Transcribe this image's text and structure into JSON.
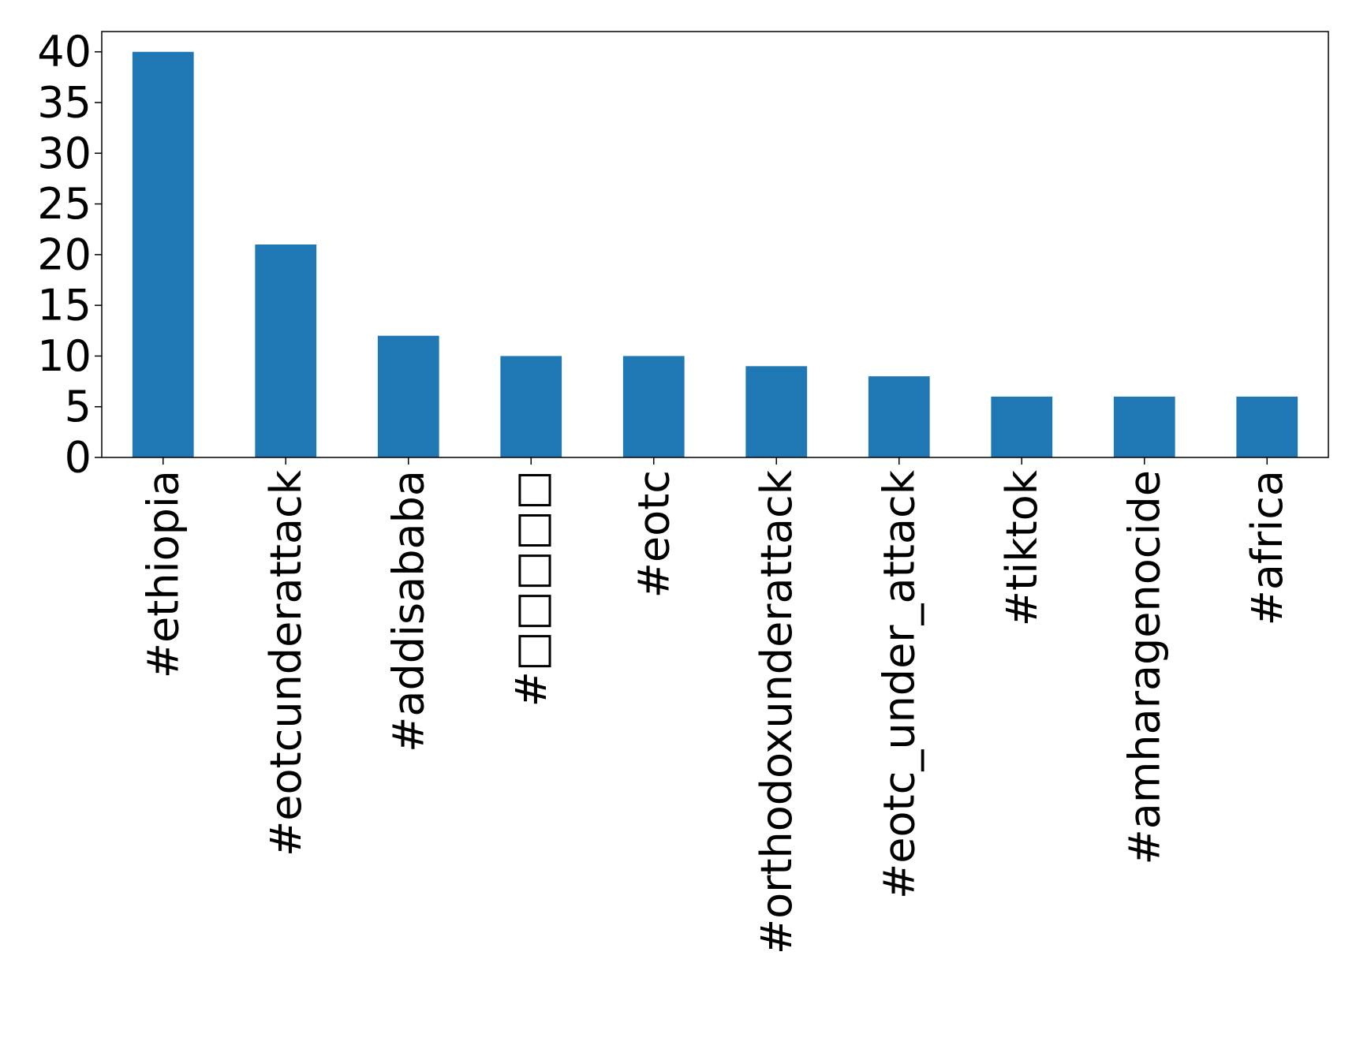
{
  "chart_data": {
    "type": "bar",
    "categories": [
      "#ethiopia",
      "#eotcunderattack",
      "#addisababa",
      "#□□□□□",
      "#eotc",
      "#orthodoxunderattack",
      "#eotc_under_attack",
      "#tiktok",
      "#amharagenocide",
      "#africa"
    ],
    "values": [
      40,
      21,
      12,
      10,
      10,
      9,
      8,
      6,
      6,
      6
    ],
    "ylim": [
      0,
      42
    ],
    "yticks": [
      0,
      5,
      10,
      15,
      20,
      25,
      30,
      35,
      40
    ],
    "title": "",
    "xlabel": "",
    "ylabel": "",
    "grid": false,
    "bar_color": "#1f77b4"
  }
}
